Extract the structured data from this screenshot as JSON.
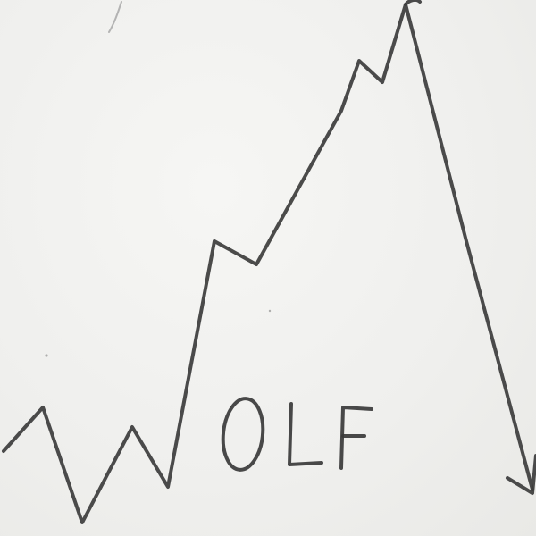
{
  "drawing": {
    "word": "OLF",
    "stroke_color": "#3c3c3c",
    "paper_color": "#f1f1ef"
  }
}
